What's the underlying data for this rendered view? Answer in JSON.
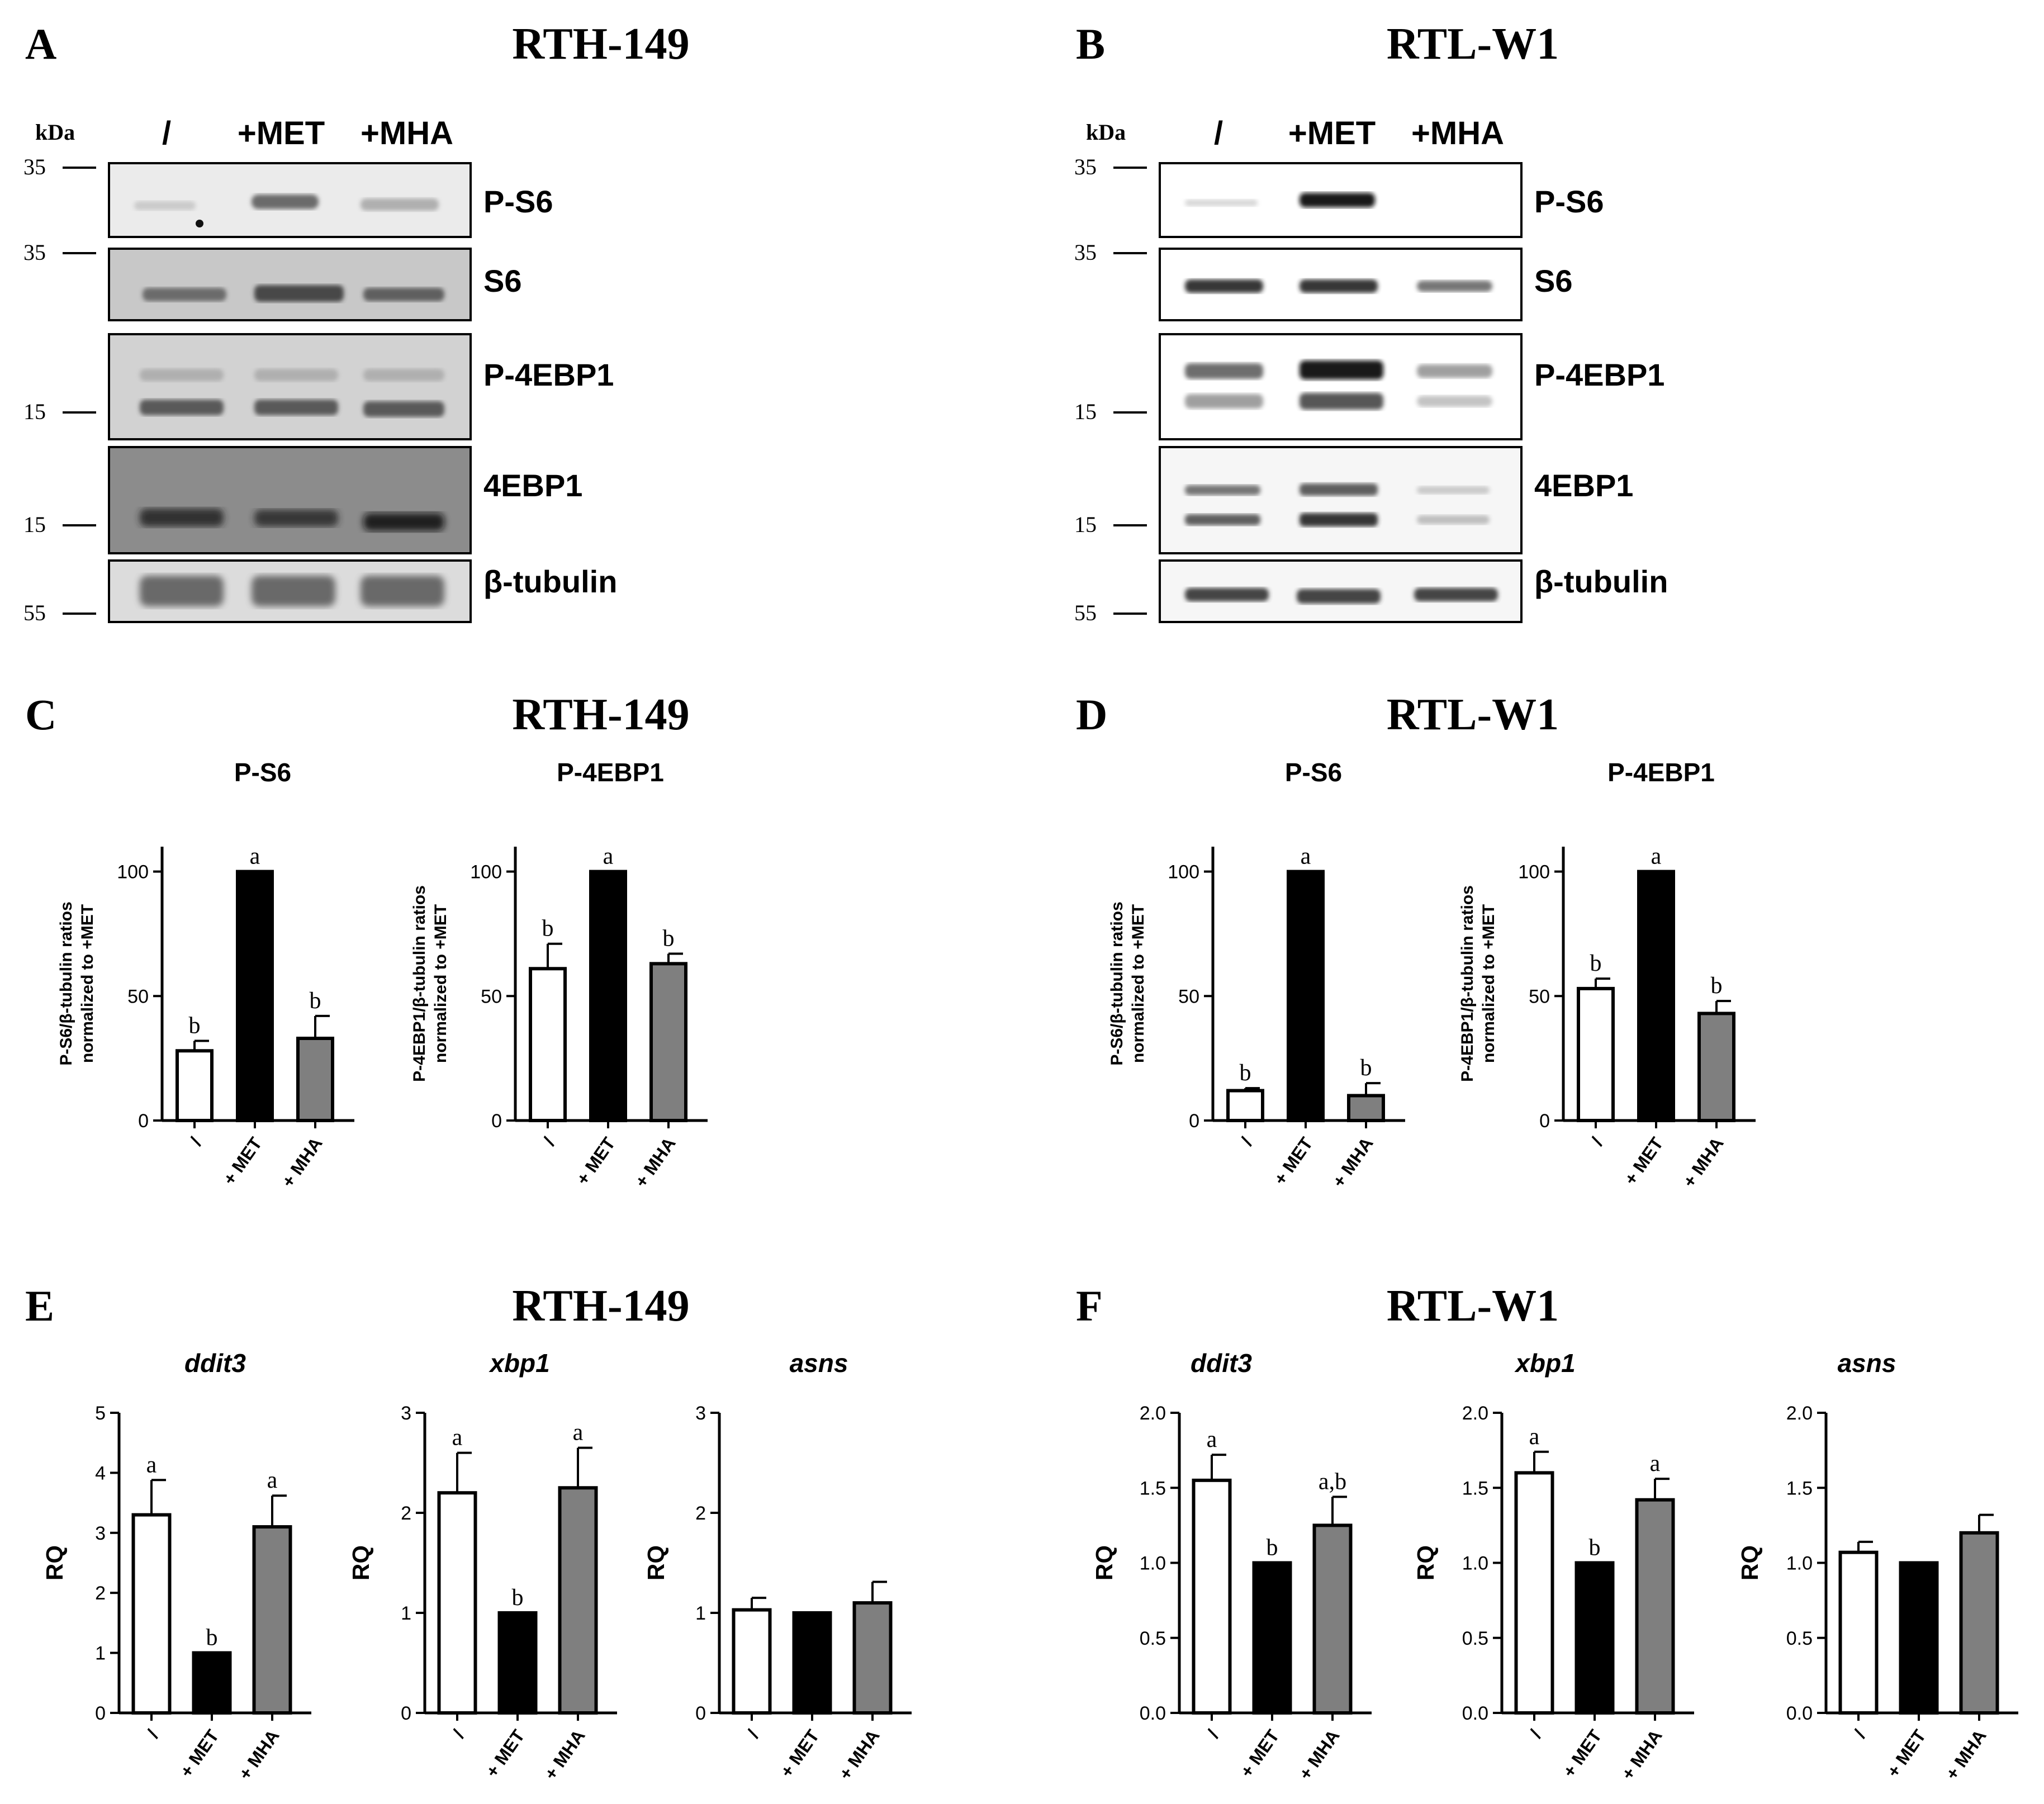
{
  "panel_a": {
    "letter": "A",
    "title": "RTH-149",
    "kda": "kDa",
    "lanes": [
      "/",
      "+MET",
      "+MHA"
    ],
    "blots": [
      {
        "label": "P-S6",
        "marker": "35"
      },
      {
        "label": "S6",
        "marker": "35"
      },
      {
        "label": "P-4EBP1",
        "marker": "15"
      },
      {
        "label": "4EBP1",
        "marker": "15"
      },
      {
        "label": "β-tubulin",
        "marker": "55"
      }
    ]
  },
  "panel_b": {
    "letter": "B",
    "title": "RTL-W1",
    "kda": "kDa",
    "lanes": [
      "/",
      "+MET",
      "+MHA"
    ],
    "blots": [
      {
        "label": "P-S6",
        "marker": "35"
      },
      {
        "label": "S6",
        "marker": "35"
      },
      {
        "label": "P-4EBP1",
        "marker": "15"
      },
      {
        "label": "4EBP1",
        "marker": "15"
      },
      {
        "label": "β-tubulin",
        "marker": "55"
      }
    ]
  },
  "panel_c": {
    "letter": "C",
    "title": "RTH-149"
  },
  "panel_d": {
    "letter": "D",
    "title": "RTL-W1"
  },
  "panel_e": {
    "letter": "E",
    "title": "RTH-149"
  },
  "panel_f": {
    "letter": "F",
    "title": "RTL-W1"
  },
  "colors": {
    "control": "#ffffff",
    "met": "#000000",
    "mha": "#7f7f7f"
  },
  "chart_data": [
    {
      "panel": "C",
      "type": "bar",
      "title": "P-S6",
      "ylabel": "P-S6/β-tubulin ratios normalized to +MET",
      "categories": [
        "/",
        "+ MET",
        "+ MHA"
      ],
      "values": [
        28,
        100,
        33
      ],
      "errors": [
        4,
        0,
        9
      ],
      "letters": [
        "b",
        "a",
        "b"
      ],
      "ylim": [
        0,
        110
      ],
      "yticks": [
        0,
        50,
        100
      ],
      "ytick_labels": [
        "0",
        "50",
        "100"
      ]
    },
    {
      "panel": "C",
      "type": "bar",
      "title": "P-4EBP1",
      "ylabel": "P-4EBP1/β-tubulin ratios normalized to +MET",
      "categories": [
        "/",
        "+ MET",
        "+ MHA"
      ],
      "values": [
        61,
        100,
        63
      ],
      "errors": [
        10,
        0,
        4
      ],
      "letters": [
        "b",
        "a",
        "b"
      ],
      "ylim": [
        0,
        110
      ],
      "yticks": [
        0,
        50,
        100
      ],
      "ytick_labels": [
        "0",
        "50",
        "100"
      ]
    },
    {
      "panel": "D",
      "type": "bar",
      "title": "P-S6",
      "ylabel": "P-S6/β-tubulin ratios normalized to +MET",
      "categories": [
        "/",
        "+ MET",
        "+ MHA"
      ],
      "values": [
        12,
        100,
        10
      ],
      "errors": [
        1,
        0,
        5
      ],
      "letters": [
        "b",
        "a",
        "b"
      ],
      "ylim": [
        0,
        110
      ],
      "yticks": [
        0,
        50,
        100
      ],
      "ytick_labels": [
        "0",
        "50",
        "100"
      ]
    },
    {
      "panel": "D",
      "type": "bar",
      "title": "P-4EBP1",
      "ylabel": "P-4EBP1/β-tubulin ratios normalized to +MET",
      "categories": [
        "/",
        "+ MET",
        "+ MHA"
      ],
      "values": [
        53,
        100,
        43
      ],
      "errors": [
        4,
        0,
        5
      ],
      "letters": [
        "b",
        "a",
        "b"
      ],
      "ylim": [
        0,
        110
      ],
      "yticks": [
        0,
        50,
        100
      ],
      "ytick_labels": [
        "0",
        "50",
        "100"
      ]
    },
    {
      "panel": "E",
      "type": "bar",
      "title": "ddit3",
      "ylabel": "RQ",
      "categories": [
        "/",
        "+ MET",
        "+ MHA"
      ],
      "values": [
        3.3,
        1.0,
        3.1
      ],
      "errors": [
        0.58,
        0,
        0.52
      ],
      "letters": [
        "a",
        "b",
        "a"
      ],
      "ylim": [
        0,
        5
      ],
      "yticks": [
        0,
        1,
        2,
        3,
        4,
        5
      ],
      "ytick_labels": [
        "0",
        "1",
        "2",
        "3",
        "4",
        "5"
      ]
    },
    {
      "panel": "E",
      "type": "bar",
      "title": "xbp1",
      "ylabel": "RQ",
      "categories": [
        "/",
        "+ MET",
        "+ MHA"
      ],
      "values": [
        2.2,
        1.0,
        2.25
      ],
      "errors": [
        0.4,
        0,
        0.4
      ],
      "letters": [
        "a",
        "b",
        "a"
      ],
      "ylim": [
        0,
        3
      ],
      "yticks": [
        0,
        1,
        2,
        3
      ],
      "ytick_labels": [
        "0",
        "1",
        "2",
        "3"
      ]
    },
    {
      "panel": "E",
      "type": "bar",
      "title": "asns",
      "ylabel": "RQ",
      "categories": [
        "/",
        "+ MET",
        "+ MHA"
      ],
      "values": [
        1.03,
        1.0,
        1.1
      ],
      "errors": [
        0.12,
        0,
        0.21
      ],
      "letters": [
        "",
        "",
        ""
      ],
      "ylim": [
        0,
        3
      ],
      "yticks": [
        0,
        1,
        2,
        3
      ],
      "ytick_labels": [
        "0",
        "1",
        "2",
        "3"
      ]
    },
    {
      "panel": "F",
      "type": "bar",
      "title": "ddit3",
      "ylabel": "RQ",
      "categories": [
        "/",
        "+ MET",
        "+ MHA"
      ],
      "values": [
        1.55,
        1.0,
        1.25
      ],
      "errors": [
        0.17,
        0,
        0.19
      ],
      "letters": [
        "a",
        "b",
        "a,b"
      ],
      "ylim": [
        0,
        2
      ],
      "yticks": [
        0,
        0.5,
        1,
        1.5,
        2
      ],
      "ytick_labels": [
        "0.0",
        "0.5",
        "1.0",
        "1.5",
        "2.0"
      ]
    },
    {
      "panel": "F",
      "type": "bar",
      "title": "xbp1",
      "ylabel": "RQ",
      "categories": [
        "/",
        "+ MET",
        "+ MHA"
      ],
      "values": [
        1.6,
        1.0,
        1.42
      ],
      "errors": [
        0.14,
        0,
        0.14
      ],
      "letters": [
        "a",
        "b",
        "a"
      ],
      "ylim": [
        0,
        2
      ],
      "yticks": [
        0,
        0.5,
        1,
        1.5,
        2
      ],
      "ytick_labels": [
        "0.0",
        "0.5",
        "1.0",
        "1.5",
        "2.0"
      ]
    },
    {
      "panel": "F",
      "type": "bar",
      "title": "asns",
      "ylabel": "RQ",
      "categories": [
        "/",
        "+ MET",
        "+ MHA"
      ],
      "values": [
        1.07,
        1.0,
        1.2
      ],
      "errors": [
        0.07,
        0,
        0.12
      ],
      "letters": [
        "",
        "",
        ""
      ],
      "ylim": [
        0,
        2
      ],
      "yticks": [
        0,
        0.5,
        1,
        1.5,
        2
      ],
      "ytick_labels": [
        "0.0",
        "0.5",
        "1.0",
        "1.5",
        "2.0"
      ]
    }
  ]
}
